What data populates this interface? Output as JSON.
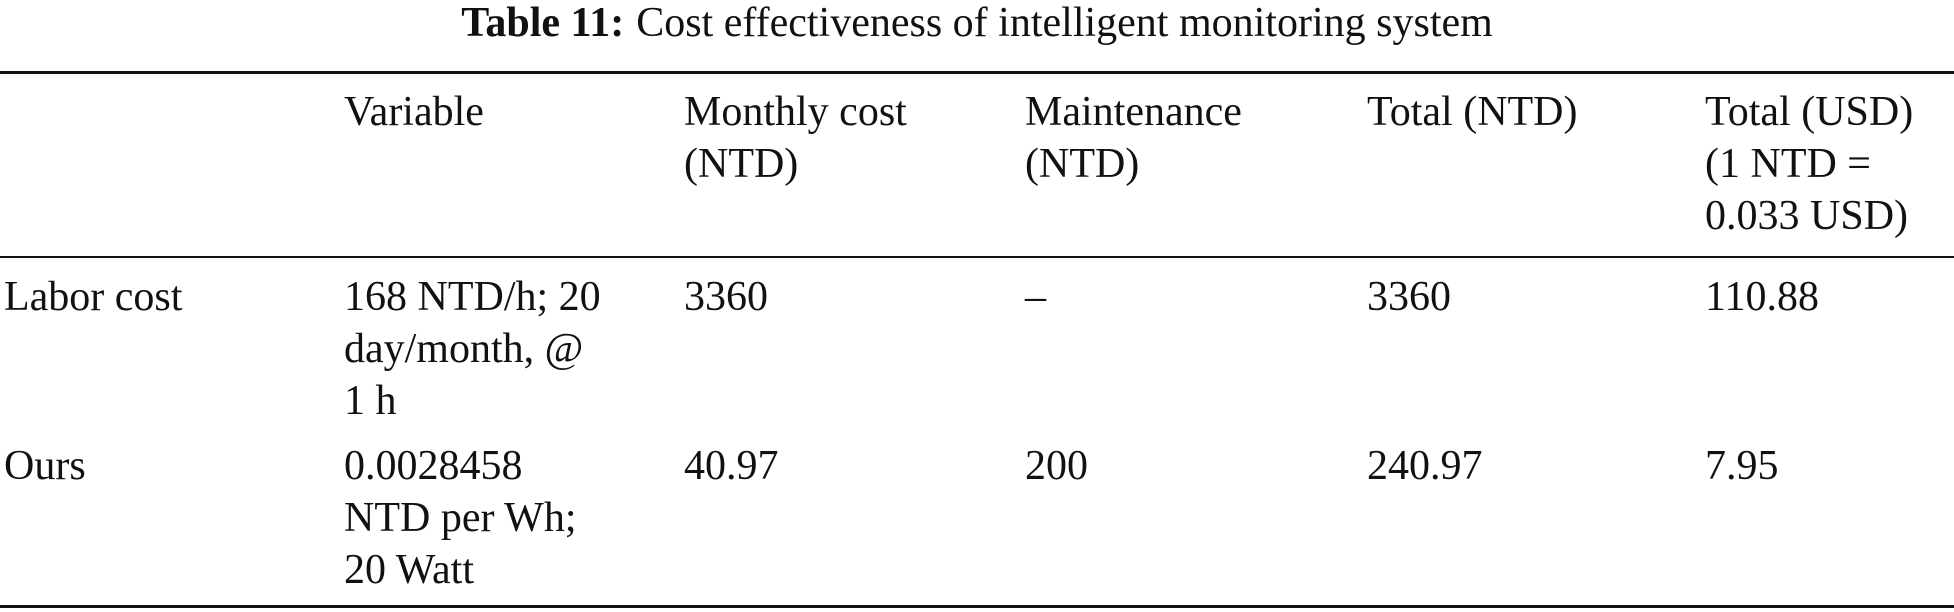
{
  "table": {
    "title": {
      "label": "Table 11:",
      "text": "Cost effectiveness of intelligent monitoring system"
    },
    "columns": [
      "",
      "Variable",
      "Monthly cost (NTD)",
      "Maintenance (NTD)",
      "Total (NTD)",
      "Total (USD) (1 NTD = 0.033 USD)"
    ],
    "rows": [
      [
        "Labor cost",
        "168 NTD/h; 20 day/month, @ 1 h",
        "3360",
        "–",
        "3360",
        "110.88"
      ],
      [
        "Ours",
        "0.0028458 NTD per Wh; 20 Watt",
        "40.97",
        "200",
        "240.97",
        "7.95"
      ]
    ]
  }
}
